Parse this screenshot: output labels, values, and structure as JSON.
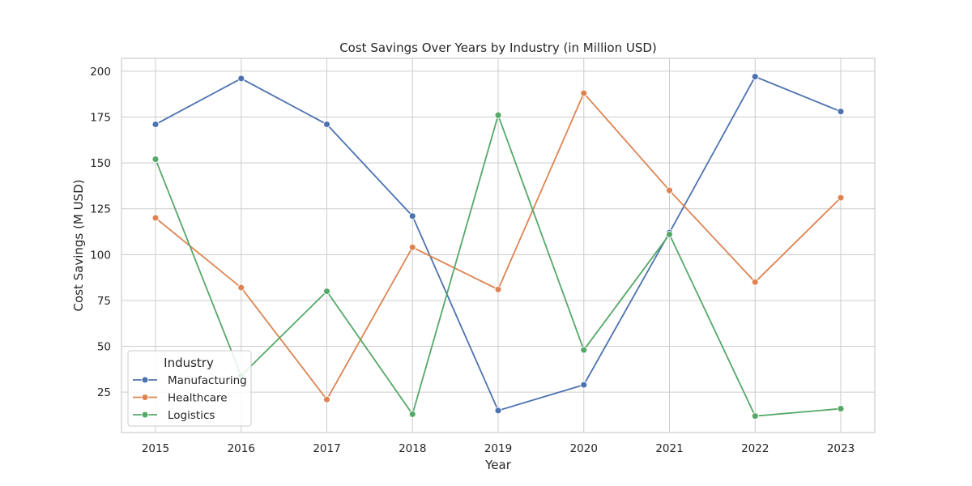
{
  "chart_data": {
    "type": "line",
    "title": "Cost Savings Over Years by Industry (in Million USD)",
    "xlabel": "Year",
    "ylabel": "Cost Savings (M USD)",
    "categories": [
      "2015",
      "2016",
      "2017",
      "2018",
      "2019",
      "2020",
      "2021",
      "2022",
      "2023"
    ],
    "ylim": [
      3,
      207
    ],
    "yticks": [
      25,
      50,
      75,
      100,
      125,
      150,
      175,
      200
    ],
    "grid": true,
    "legend": {
      "title": "Industry",
      "placement": "lower-left"
    },
    "series": [
      {
        "name": "Manufacturing",
        "color": "#4c72b0",
        "values": [
          171,
          196,
          171,
          121,
          15,
          29,
          112,
          197,
          178
        ]
      },
      {
        "name": "Healthcare",
        "color": "#dd8452",
        "values": [
          120,
          82,
          21,
          104,
          81,
          188,
          135,
          85,
          131
        ]
      },
      {
        "name": "Logistics",
        "color": "#55a868",
        "values": [
          152,
          34,
          80,
          13,
          176,
          48,
          111,
          12,
          16
        ]
      }
    ]
  }
}
